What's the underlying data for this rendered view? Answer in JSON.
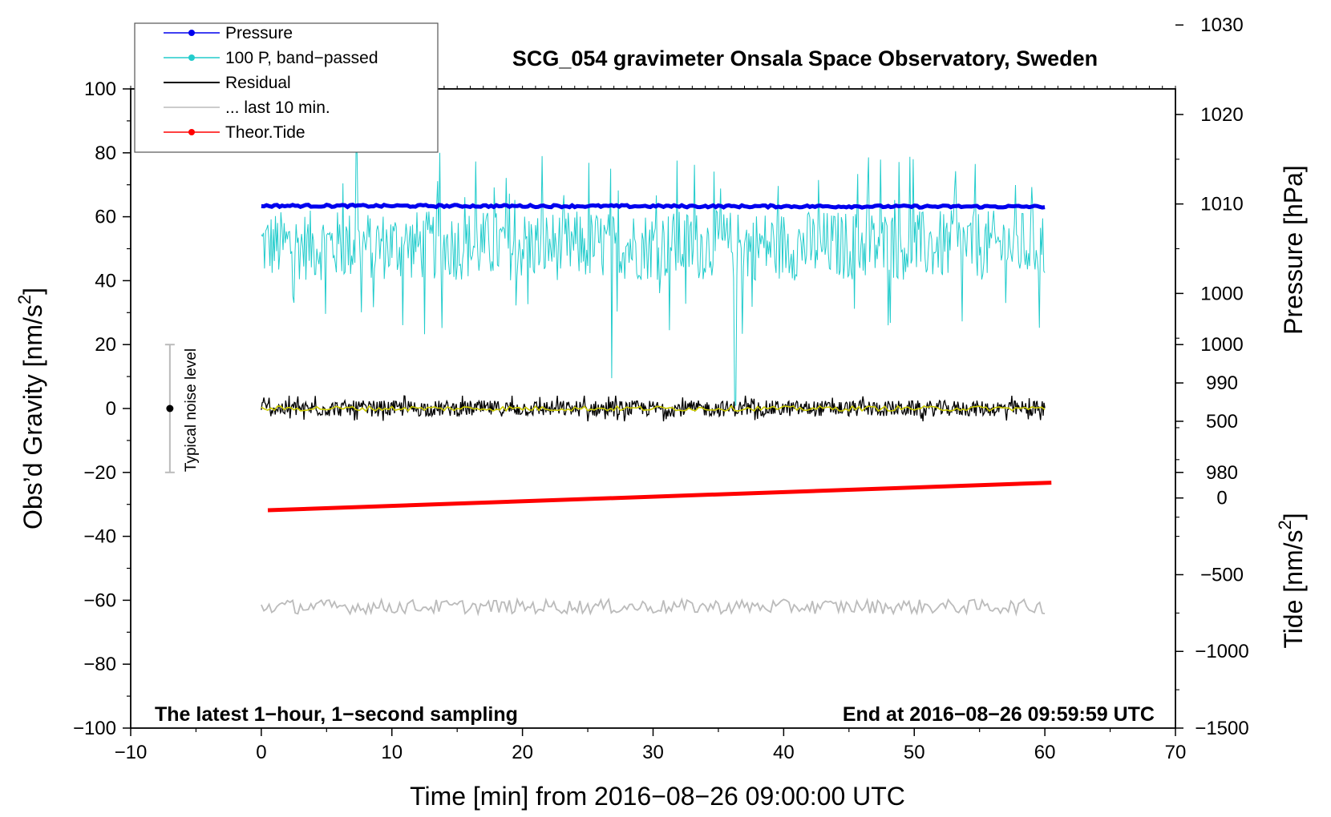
{
  "chart_data": {
    "type": "line",
    "title": "SCG_054 gravimeter Onsala Space Observatory, Sweden",
    "xlabel": "Time [min] from 2016−08−26 09:00:00 UTC",
    "ylabel_left": "Obs’d Gravity [nm/s",
    "ylabel_left_sup": "2",
    "ylabel_left_close": "]",
    "ylabel_right_pressure": "Pressure [hPa]",
    "ylabel_right_tide": "Tide [nm/s",
    "ylabel_right_tide_sup": "2",
    "ylabel_right_tide_close": "]",
    "xlim": [
      -10,
      70
    ],
    "ylim": [
      -100,
      100
    ],
    "pressure_axis": {
      "ticks": [
        980,
        990,
        1000,
        1010,
        1020,
        1030
      ],
      "range_on_left": [
        -20,
        120
      ]
    },
    "tide_axis": {
      "ticks": [
        -1500,
        -1000,
        -500,
        0,
        500,
        1000
      ],
      "range_on_left": [
        -100,
        20
      ]
    },
    "x_ticks": [
      -10,
      0,
      10,
      20,
      30,
      40,
      50,
      60,
      70
    ],
    "y_ticks": [
      -100,
      -80,
      -60,
      -40,
      -20,
      0,
      20,
      40,
      60,
      80,
      100
    ],
    "x_tick_labels": [
      "−10",
      "0",
      "10",
      "20",
      "30",
      "40",
      "50",
      "60",
      "70"
    ],
    "y_tick_labels": [
      "−100",
      "−80",
      "−60",
      "−40",
      "−20",
      "0",
      "20",
      "40",
      "60",
      "80",
      "100"
    ],
    "pressure_tick_labels": [
      "980",
      "990",
      "1000",
      "1010",
      "1020",
      "1030"
    ],
    "tide_tick_labels": [
      "−1500",
      "−1000",
      "−500",
      "0",
      "500",
      "1000"
    ],
    "legend": [
      {
        "name": "Pressure",
        "color": "#0000ee",
        "marker": true
      },
      {
        "name": "100 P, band−passed",
        "color": "#22cccc",
        "marker": true
      },
      {
        "name": "Residual",
        "color": "#000000",
        "marker": false
      },
      {
        "name": "... last 10 min.",
        "color": "#bbbbbb",
        "marker": false
      },
      {
        "name": "Theor.Tide",
        "color": "#ff0000",
        "marker": true
      }
    ],
    "annotation_left": "The latest 1−hour, 1−second sampling",
    "annotation_right": "End at 2016−08−26 09:59:59 UTC",
    "noise_label": "Typical noise level",
    "noise_range": [
      -20,
      20
    ],
    "noise_x": -7,
    "series": [
      {
        "name": "Pressure",
        "axis": "pressure",
        "x_range": [
          0,
          60
        ],
        "value": 1009.8
      },
      {
        "name": "100 P, band−passed",
        "axis": "left",
        "x_range": [
          0,
          60
        ],
        "mean": 51,
        "min": 1,
        "max": 80
      },
      {
        "name": "Residual",
        "axis": "left",
        "x_range": [
          0,
          60
        ],
        "mean": 0,
        "min": -4,
        "max": 4
      },
      {
        "name": "Residual smoothed",
        "axis": "left",
        "x_range": [
          0,
          60
        ],
        "mean": 0,
        "color": "#cccc00"
      },
      {
        "name": "... last 10 min.",
        "axis": "left",
        "x_range": [
          0,
          60
        ],
        "mean": -62,
        "min": -65,
        "max": -58
      },
      {
        "name": "Theor.Tide",
        "axis": "tide",
        "x": [
          0.5,
          60.5
        ],
        "values": [
          -80,
          100
        ]
      }
    ],
    "colors": {
      "pressure": "#0000ee",
      "bandpassed": "#22cccc",
      "residual": "#000000",
      "smooth": "#cccc00",
      "last10": "#bbbbbb",
      "tide": "#ff0000",
      "noise_bar": "#bbbbbb"
    }
  }
}
